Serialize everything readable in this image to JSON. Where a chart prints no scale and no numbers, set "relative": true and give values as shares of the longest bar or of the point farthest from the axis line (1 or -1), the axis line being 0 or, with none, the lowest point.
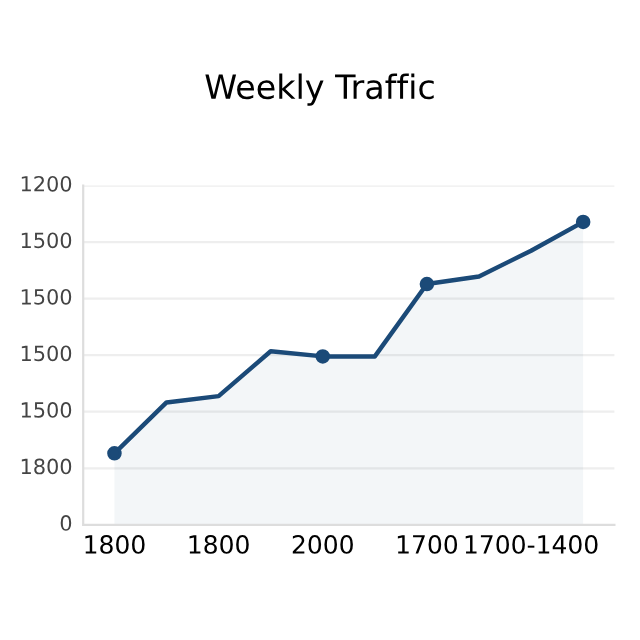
{
  "chart_data": {
    "type": "area",
    "title": "Weekly Traffic",
    "relative": true,
    "categories": [
      "1800",
      null,
      "1800",
      null,
      "2000",
      null,
      "1700",
      null,
      "1700-1400",
      null
    ],
    "series": [
      {
        "color": "#1b4a78",
        "values": [
          0.236,
          0.404,
          0.425,
          0.573,
          0.556,
          0.556,
          0.795,
          0.82,
          0.905,
          1
        ]
      },
      {
        "type": "scatter",
        "color": "#1b4a78",
        "values": [
          0.236,
          null,
          null,
          null,
          0.556,
          null,
          0.795,
          null,
          null,
          1
        ]
      }
    ],
    "annotations": [
      "1200",
      "1500",
      "1500",
      "1500",
      "1500",
      "1800",
      "0"
    ],
    "grid": "y"
  }
}
